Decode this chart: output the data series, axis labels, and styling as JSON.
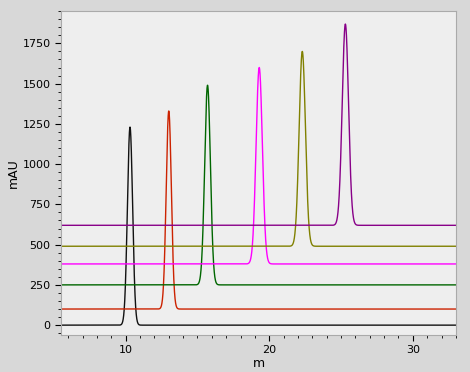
{
  "title": "",
  "xlabel": "m",
  "ylabel": "mAU",
  "xlim": [
    5.5,
    33
  ],
  "ylim": [
    -60,
    1950
  ],
  "yticks": [
    0,
    250,
    500,
    750,
    1000,
    1250,
    1500,
    1750
  ],
  "xticks": [
    10,
    20,
    30
  ],
  "background_color": "#d8d8d8",
  "plot_bg_color": "#eeeeee",
  "series": [
    {
      "color": "#111111",
      "baseline": 0,
      "peak_x": 10.3,
      "peak_height": 1230,
      "peak_sigma": 0.18
    },
    {
      "color": "#cc2200",
      "baseline": 100,
      "peak_x": 13.0,
      "peak_height": 1330,
      "peak_sigma": 0.18
    },
    {
      "color": "#006600",
      "baseline": 250,
      "peak_x": 15.7,
      "peak_height": 1490,
      "peak_sigma": 0.2
    },
    {
      "color": "#ff00ff",
      "baseline": 380,
      "peak_x": 19.3,
      "peak_height": 1600,
      "peak_sigma": 0.22
    },
    {
      "color": "#808000",
      "baseline": 490,
      "peak_x": 22.3,
      "peak_height": 1700,
      "peak_sigma": 0.22
    },
    {
      "color": "#880088",
      "baseline": 620,
      "peak_x": 25.3,
      "peak_height": 1870,
      "peak_sigma": 0.22
    }
  ]
}
